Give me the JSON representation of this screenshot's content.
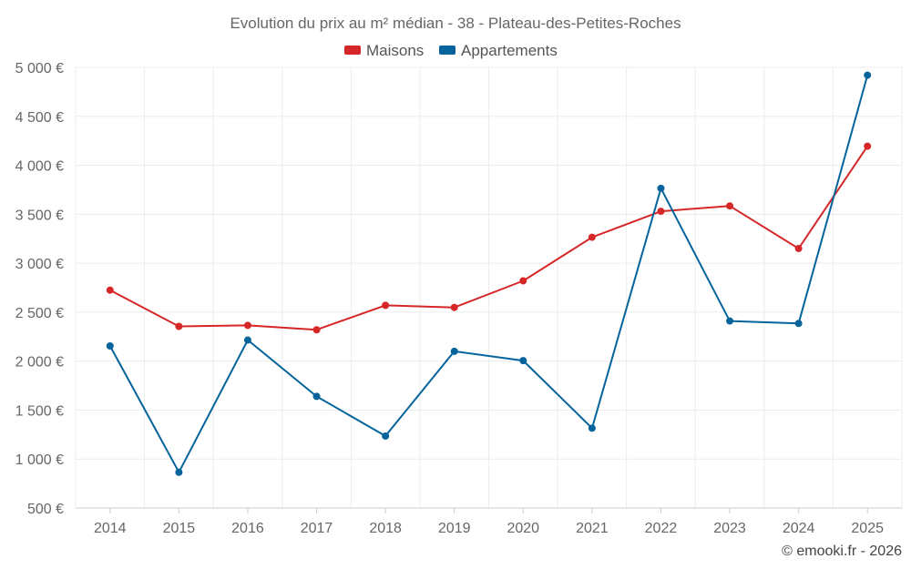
{
  "chart_data": {
    "type": "line",
    "title": "Evolution du prix au m² médian - 38 - Plateau-des-Petites-Roches",
    "xlabel": "",
    "ylabel": "",
    "categories": [
      "2014",
      "2015",
      "2016",
      "2017",
      "2018",
      "2019",
      "2020",
      "2021",
      "2022",
      "2023",
      "2024",
      "2025"
    ],
    "ylim": [
      500,
      5000
    ],
    "yticks": [
      {
        "value": 500,
        "label": "500 €"
      },
      {
        "value": 1000,
        "label": "1 000 €"
      },
      {
        "value": 1500,
        "label": "1 500 €"
      },
      {
        "value": 2000,
        "label": "2 000 €"
      },
      {
        "value": 2500,
        "label": "2 500 €"
      },
      {
        "value": 3000,
        "label": "3 000 €"
      },
      {
        "value": 3500,
        "label": "3 500 €"
      },
      {
        "value": 4000,
        "label": "4 000 €"
      },
      {
        "value": 4500,
        "label": "4 500 €"
      },
      {
        "value": 5000,
        "label": "5 000 €"
      }
    ],
    "grid": true,
    "legend_position": "top-center",
    "series": [
      {
        "name": "Maisons",
        "color": "#d62728",
        "values": [
          2725,
          2355,
          2365,
          2320,
          2570,
          2548,
          2820,
          3265,
          3530,
          3585,
          3150,
          4195
        ]
      },
      {
        "name": "Appartements",
        "color": "#05649b",
        "values": [
          2155,
          865,
          2215,
          1640,
          1235,
          2100,
          2005,
          1315,
          3765,
          2410,
          2385,
          4920
        ]
      }
    ]
  },
  "credit": "© emooki.fr - 2026"
}
